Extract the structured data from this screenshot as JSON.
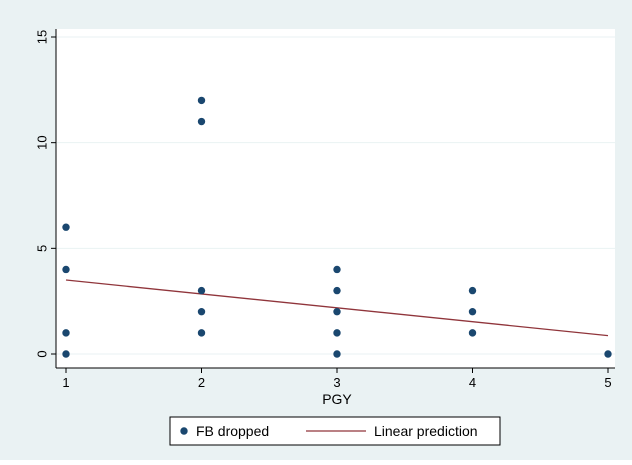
{
  "chart_data": {
    "type": "scatter",
    "xlabel": "PGY",
    "ylabel": "",
    "xlim": [
      1,
      5
    ],
    "ylim": [
      0,
      15
    ],
    "xticks": [
      "1",
      "2",
      "3",
      "4",
      "5"
    ],
    "yticks": [
      "0",
      "5",
      "10",
      "15"
    ],
    "grid": true,
    "legend_position": "bottom",
    "series": [
      {
        "name": "FB dropped",
        "type": "scatter",
        "color": "#1a476f",
        "points": [
          [
            1,
            0
          ],
          [
            1,
            1
          ],
          [
            1,
            4
          ],
          [
            1,
            6
          ],
          [
            2,
            1
          ],
          [
            2,
            2
          ],
          [
            2,
            3
          ],
          [
            2,
            11
          ],
          [
            2,
            12
          ],
          [
            3,
            0
          ],
          [
            3,
            1
          ],
          [
            3,
            2
          ],
          [
            3,
            3
          ],
          [
            3,
            4
          ],
          [
            4,
            1
          ],
          [
            4,
            2
          ],
          [
            4,
            3
          ],
          [
            5,
            0
          ]
        ]
      },
      {
        "name": "Linear prediction",
        "type": "line",
        "color": "#90353b",
        "points": [
          [
            1,
            3.5
          ],
          [
            5,
            0.87
          ]
        ]
      }
    ]
  },
  "colors": {
    "outer_background": "#eaf2f3",
    "plot_background": "#ffffff",
    "gridline": "#eaf2f3"
  }
}
